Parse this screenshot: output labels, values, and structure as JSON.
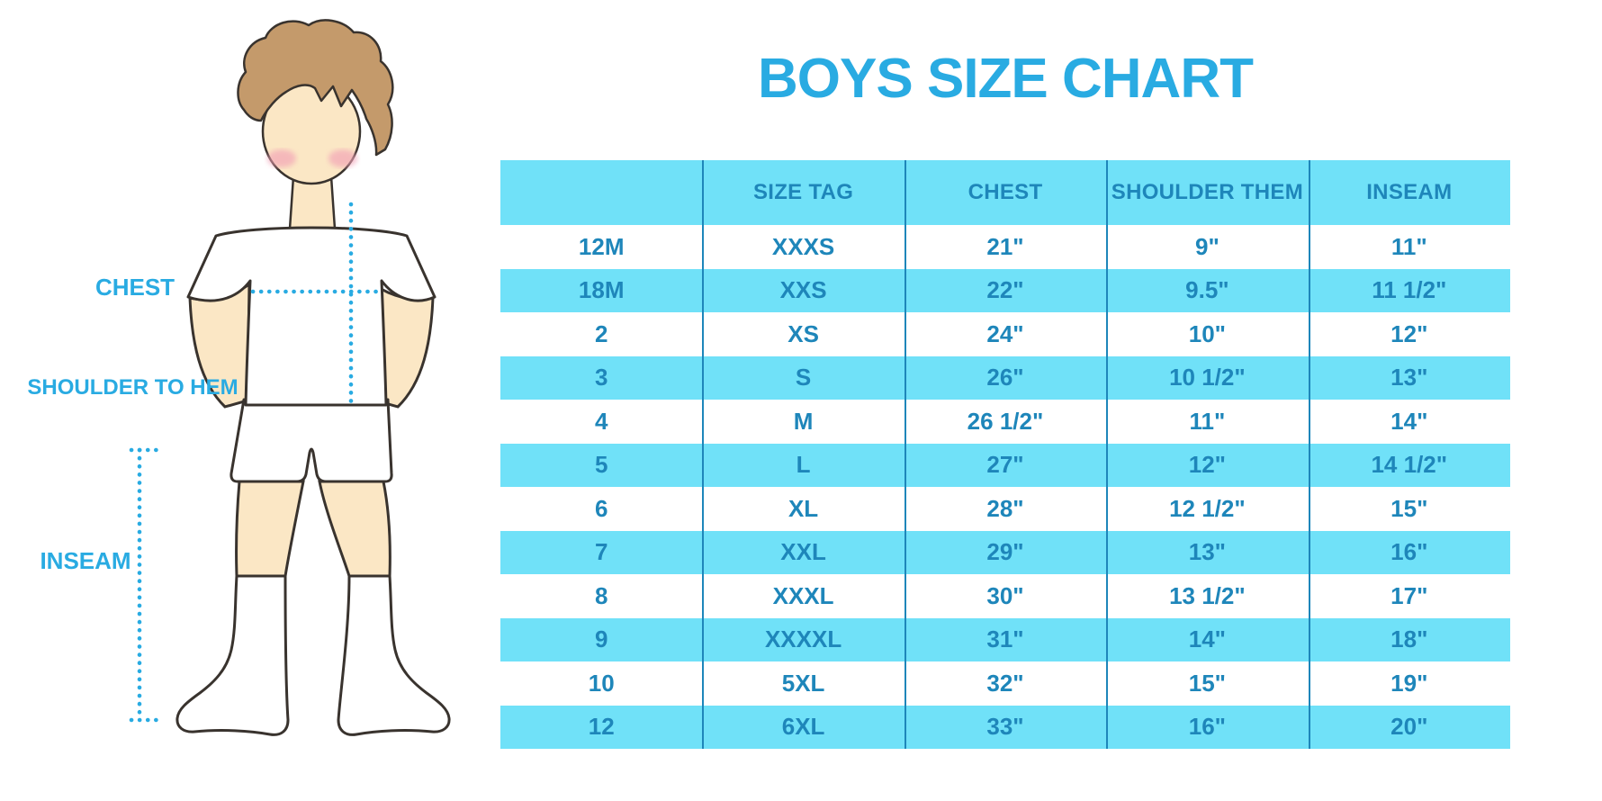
{
  "title": "BOYS SIZE CHART",
  "figure_labels": {
    "chest": "CHEST",
    "shoulder_to_hem": "SHOULDER TO HEM",
    "inseam": "INSEAM"
  },
  "colors": {
    "accent": "#29ABE2",
    "stripe": "#70E1F8",
    "tabletext": "#1E86BA",
    "skin": "#FBE7C5",
    "hair": "#C49A6B",
    "outline": "#39332E",
    "blush": "#F2A0B5"
  },
  "chart_data": {
    "type": "table",
    "title": "BOYS SIZE CHART",
    "columns": [
      "",
      "SIZE TAG",
      "CHEST",
      "SHOULDER THEM",
      "INSEAM"
    ],
    "rows": [
      [
        "12M",
        "XXXS",
        "21\"",
        "9\"",
        "11\""
      ],
      [
        "18M",
        "XXS",
        "22\"",
        "9.5\"",
        "11 1/2\""
      ],
      [
        "2",
        "XS",
        "24\"",
        "10\"",
        "12\""
      ],
      [
        "3",
        "S",
        "26\"",
        "10 1/2\"",
        "13\""
      ],
      [
        "4",
        "M",
        "26 1/2\"",
        "11\"",
        "14\""
      ],
      [
        "5",
        "L",
        "27\"",
        "12\"",
        "14 1/2\""
      ],
      [
        "6",
        "XL",
        "28\"",
        "12 1/2\"",
        "15\""
      ],
      [
        "7",
        "XXL",
        "29\"",
        "13\"",
        "16\""
      ],
      [
        "8",
        "XXXL",
        "30\"",
        "13 1/2\"",
        "17\""
      ],
      [
        "9",
        "XXXXL",
        "31\"",
        "14\"",
        "18\""
      ],
      [
        "10",
        "5XL",
        "32\"",
        "15\"",
        "19\""
      ],
      [
        "12",
        "6XL",
        "33\"",
        "16\"",
        "20\""
      ]
    ],
    "row_stripe_colors": [
      "#FFFFFF",
      "#70E1F8"
    ],
    "legend_position": "none",
    "grid": "column-dividers-only"
  }
}
